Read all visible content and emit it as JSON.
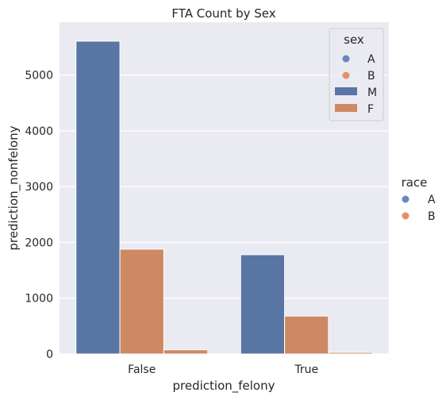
{
  "chart_data": {
    "type": "bar",
    "title": "FTA Count by Sex",
    "xlabel": "prediction_felony",
    "ylabel": "prediction_nonfelony",
    "categories": [
      "False",
      "True"
    ],
    "series": [
      {
        "name": "M",
        "values": [
          5610,
          1780
        ]
      },
      {
        "name": "F",
        "values": [
          1880,
          680
        ]
      },
      {
        "name": "",
        "values": [
          75,
          28
        ]
      }
    ],
    "yticks": [
      0,
      1000,
      2000,
      3000,
      4000,
      5000
    ],
    "ylim": [
      0,
      5950
    ],
    "grid": true,
    "inner_legend": {
      "title": "sex",
      "placement": "top-right",
      "point_entries": [
        "A",
        "B"
      ],
      "bar_entries": [
        "M",
        "F"
      ]
    },
    "outer_legend": {
      "title": "race",
      "placement": "right",
      "entries": [
        "A",
        "B"
      ]
    },
    "colors": {
      "blue": "#5975a4",
      "orange": "#cc8963",
      "background": "#eaeaf2",
      "grid": "#ffffff",
      "marker_blue": "#6b87bd",
      "marker_orange": "#e1916a"
    }
  }
}
